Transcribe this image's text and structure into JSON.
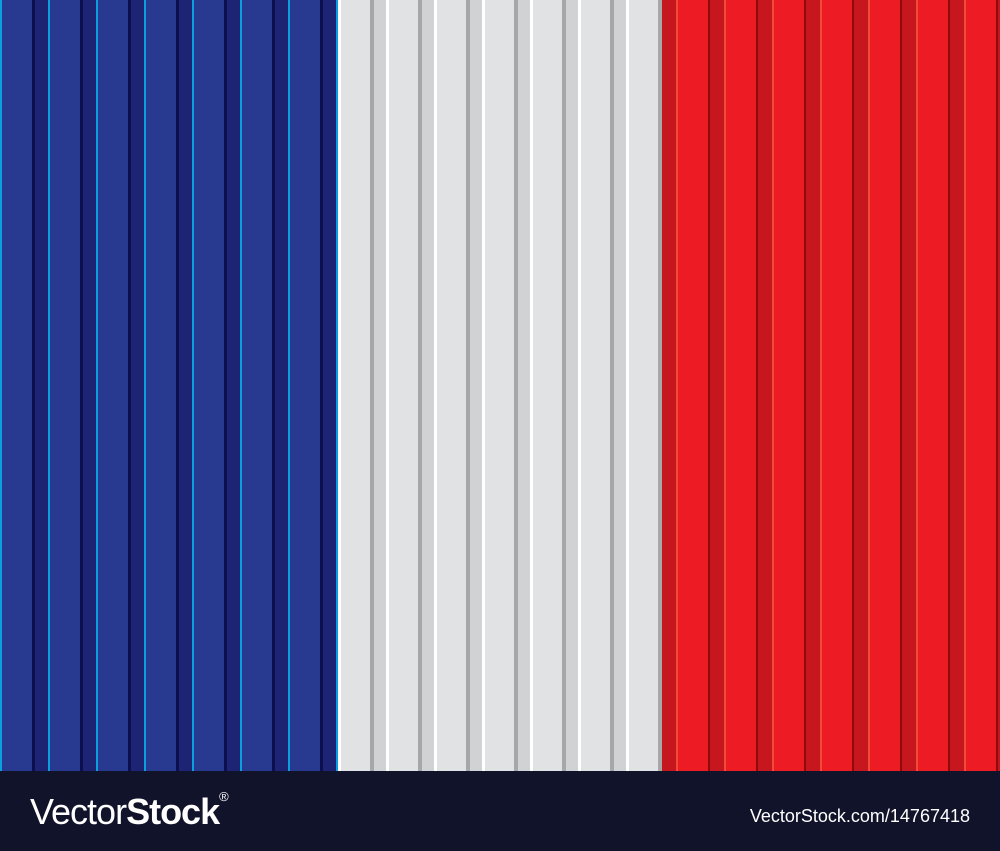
{
  "flag": {
    "colors": {
      "blue": "#283990",
      "white": "#e1e2e4",
      "red": "#ed1c24"
    }
  },
  "footer": {
    "logo_light": "Vector",
    "logo_bold": "Stock",
    "logo_mark": "®",
    "reference": "VectorStock.com/14767418"
  }
}
